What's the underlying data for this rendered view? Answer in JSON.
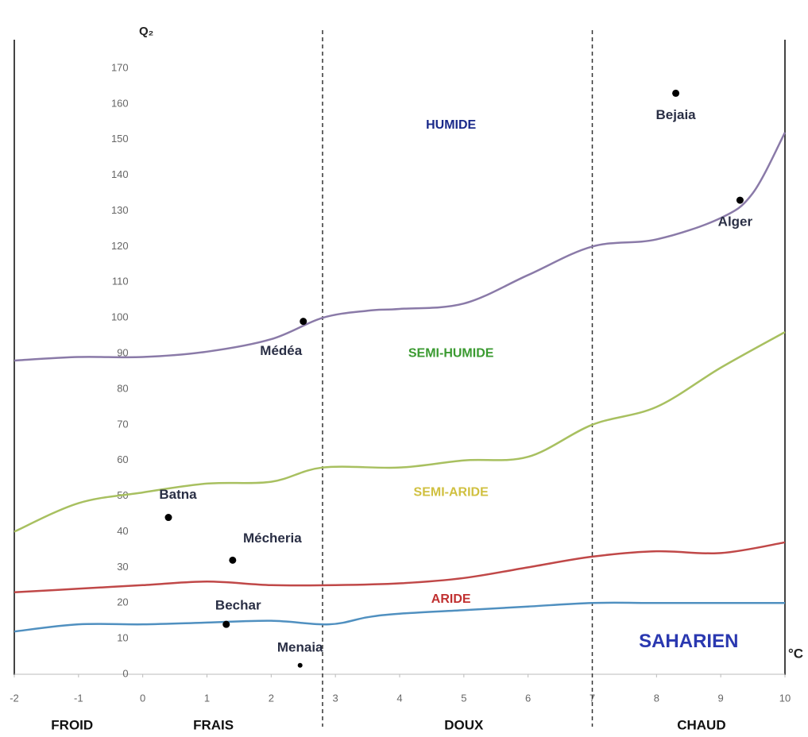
{
  "chart_data": {
    "type": "line",
    "y_label": "Q₂",
    "x_label": "°C",
    "xlim": [
      -2,
      10
    ],
    "xticks": [
      -2,
      -1,
      0,
      1,
      2,
      3,
      4,
      5,
      6,
      7,
      8,
      9,
      10
    ],
    "ylim": [
      0,
      170
    ],
    "yticks": [
      0,
      10,
      20,
      30,
      40,
      50,
      60,
      70,
      80,
      90,
      100,
      110,
      120,
      130,
      140,
      150,
      160,
      170
    ],
    "dividers": [
      2.8,
      7
    ],
    "series": [
      {
        "color": "#8a7aa8",
        "x": [
          -2,
          -1,
          0,
          1,
          2,
          2.8,
          3.5,
          4,
          5,
          6,
          7,
          8,
          9,
          9.5,
          10
        ],
        "values": [
          88,
          89,
          89,
          90.5,
          94,
          100,
          102,
          102.5,
          104,
          112,
          120,
          122,
          128,
          135,
          152
        ]
      },
      {
        "color": "#a8c060",
        "x": [
          -2,
          -1,
          0,
          1,
          2,
          2.8,
          4,
          5,
          6,
          7,
          8,
          9,
          10
        ],
        "values": [
          40,
          48,
          51,
          53.5,
          54,
          58,
          58,
          60,
          61,
          70,
          75,
          86,
          96
        ]
      },
      {
        "color": "#c04848",
        "x": [
          -2,
          -1,
          0,
          1,
          2,
          3,
          4,
          5,
          6,
          7,
          8,
          9,
          10
        ],
        "values": [
          23,
          24,
          25,
          26,
          25,
          25,
          25.5,
          27,
          30,
          33,
          34.5,
          34,
          37
        ]
      },
      {
        "color": "#5090c0",
        "x": [
          -2,
          -1,
          0,
          1,
          2,
          2.9,
          3.5,
          4,
          5,
          6,
          7,
          8,
          9,
          10
        ],
        "values": [
          12,
          14,
          14,
          14.5,
          15,
          14,
          16,
          17,
          18,
          19,
          20,
          20,
          20,
          20
        ]
      }
    ],
    "points": [
      {
        "name": "Bejaia",
        "x": 8.3,
        "y": 163
      },
      {
        "name": "Alger",
        "x": 9.3,
        "y": 133
      },
      {
        "name": "Médéa",
        "x": 2.5,
        "y": 99
      },
      {
        "name": "Batna",
        "x": 0.4,
        "y": 44
      },
      {
        "name": "Mécheria",
        "x": 1.4,
        "y": 32
      },
      {
        "name": "Bechar",
        "x": 1.3,
        "y": 14
      },
      {
        "name": "Menaia",
        "x": 2.45,
        "y": 2.5
      }
    ],
    "zones": [
      {
        "label": "HUMIDE",
        "color": "#1a2a8a"
      },
      {
        "label": "SEMI-HUMIDE",
        "color": "#3a9a30"
      },
      {
        "label": "SEMI-ARIDE",
        "color": "#d0c040"
      },
      {
        "label": "ARIDE",
        "color": "#c03030"
      },
      {
        "label": "SAHARIEN",
        "color": "#2a38b0"
      }
    ],
    "thermal_zones": [
      "FROID",
      "FRAIS",
      "DOUX",
      "CHAUD"
    ]
  }
}
